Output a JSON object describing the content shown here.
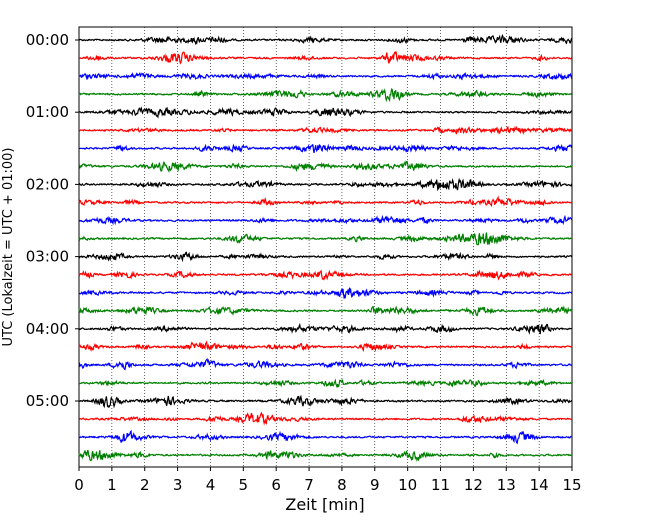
{
  "chart_data": {
    "type": "line",
    "title": "",
    "xlabel": "Zeit  [min]",
    "ylabel": "UTC (Lokalzeit = UTC + 01:00)",
    "xlim": [
      0,
      15
    ],
    "x_ticks": [
      "0",
      "1",
      "2",
      "3",
      "4",
      "5",
      "6",
      "7",
      "8",
      "9",
      "10",
      "11",
      "12",
      "13",
      "14",
      "15"
    ],
    "y_ticks": [
      "00:00",
      "01:00",
      "02:00",
      "03:00",
      "04:00",
      "05:00"
    ],
    "trace_interval_min": 15,
    "trace_count": 24,
    "trace_colors": [
      "#000000",
      "#ff0000",
      "#0000ff",
      "#008000"
    ],
    "vertical_grid": "dotted at each minute",
    "legend": "none"
  }
}
